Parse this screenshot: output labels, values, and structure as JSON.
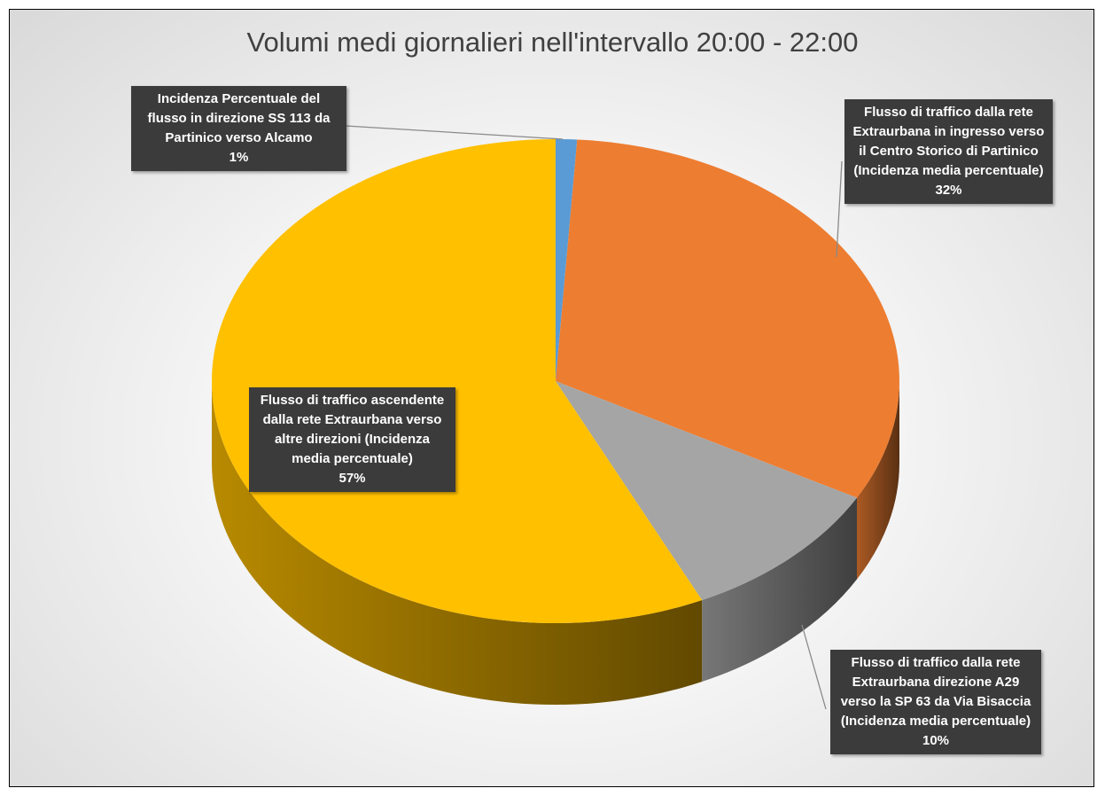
{
  "chart_data": {
    "type": "pie",
    "title": "Volumi medi giornalieri nell'intervallo 20:00 - 22:00",
    "categories": [
      "Incidenza Percentuale del flusso in direzione SS 113 da Partinico verso Alcamo",
      "Flusso di traffico dalla rete Extraurbana in ingresso verso il Centro Storico di Partinico (Incidenza media percentuale)",
      "Flusso di traffico dalla rete Extraurbana direzione A29 verso la SP 63 da Via Bisaccia (Incidenza media percentuale)",
      "Flusso di traffico ascendente dalla rete Extraurbana verso altre direzioni (Incidenza media percentuale)"
    ],
    "values": [
      1,
      32,
      10,
      57
    ],
    "value_labels": [
      "1%",
      "32%",
      "10%",
      "57%"
    ],
    "colors": [
      "#5b9bd5",
      "#ed7d31",
      "#a5a5a5",
      "#ffc000"
    ]
  }
}
